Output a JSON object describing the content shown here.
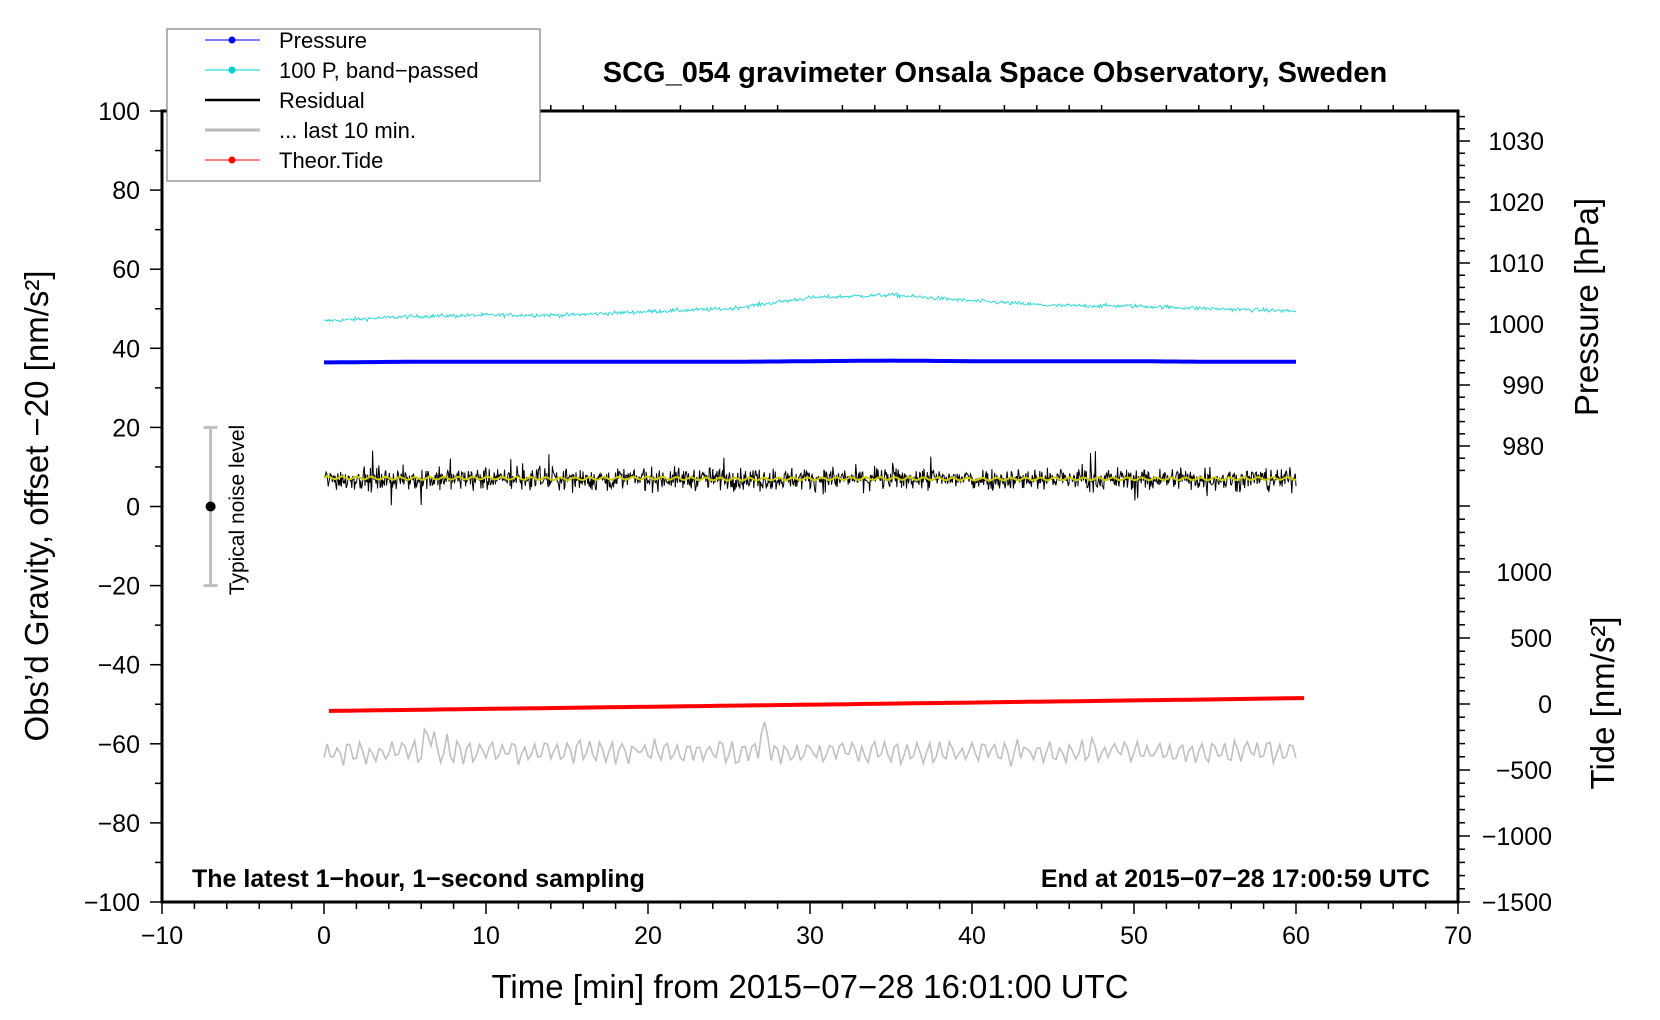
{
  "chart_data": {
    "type": "line",
    "title": "SCG_054 gravimeter Onsala Space Observatory, Sweden",
    "xlabel": "Time [min] from 2015−07−28 16:01:00 UTC",
    "ylabel": "Obs’d Gravity, offset −20 [nm/s²]",
    "y2label_pressure": "Pressure [hPa]",
    "y2label_tide": "Tide [nm/s²]",
    "xlim": [
      -10,
      70
    ],
    "ylim": [
      -100,
      100
    ],
    "pressure_lim_labels": [
      980,
      1030
    ],
    "tide_lim_labels": [
      -1500,
      1000
    ],
    "xticks": [
      "−10",
      "0",
      "10",
      "20",
      "30",
      "40",
      "50",
      "60",
      "70"
    ],
    "xtick_values": [
      -10,
      0,
      10,
      20,
      30,
      40,
      50,
      60,
      70
    ],
    "yticks": [
      "100",
      "80",
      "60",
      "40",
      "20",
      "0",
      "−20",
      "−40",
      "−60",
      "−80",
      "−100"
    ],
    "ytick_values": [
      100,
      80,
      60,
      40,
      20,
      0,
      -20,
      -40,
      -60,
      -80,
      -100
    ],
    "pressure_ticks": [
      "1030",
      "1020",
      "1010",
      "1000",
      "990",
      "980"
    ],
    "pressure_tick_values": [
      1030,
      1020,
      1010,
      1000,
      990,
      980
    ],
    "tide_ticks": [
      "1000",
      "500",
      "0",
      "−500",
      "−1000",
      "−1500"
    ],
    "tide_tick_values": [
      1000,
      500,
      0,
      -500,
      -1000,
      -1500
    ],
    "annotation_left": "The latest 1−hour, 1−second sampling",
    "annotation_right": "End at 2015−07−28 17:00:59 UTC",
    "noise_bar": {
      "label": "Typical noise level",
      "x": -7,
      "center": 0,
      "range": [
        -20,
        20
      ]
    },
    "legend_position": "top-left",
    "legend": [
      {
        "label": "Pressure",
        "color": "#0000ff",
        "marker": true
      },
      {
        "label": "100 P, band−passed",
        "color": "#00cccc",
        "marker": true
      },
      {
        "label": "Residual",
        "color": "#000000",
        "marker": false
      },
      {
        "label": "... last 10 min.",
        "color": "#bbbbbb",
        "marker": false
      },
      {
        "label": "Theor.Tide",
        "color": "#ff0000",
        "marker": true
      }
    ],
    "x": [
      0,
      5,
      10,
      15,
      20,
      25,
      30,
      35,
      40,
      45,
      50,
      55,
      60
    ],
    "series": [
      {
        "name": "Pressure",
        "axis": "pressure_hPa",
        "color": "#0000ff",
        "values": [
          993.7,
          993.8,
          993.8,
          993.8,
          993.8,
          993.8,
          993.9,
          994.0,
          993.9,
          993.9,
          993.9,
          993.8,
          993.8
        ]
      },
      {
        "name": "100 P, band-passed",
        "axis": "gravity",
        "color": "#33d6d6",
        "values": [
          46.9,
          48.0,
          48.4,
          48.4,
          49.3,
          50.0,
          52.8,
          53.5,
          52.0,
          50.8,
          50.7,
          50.0,
          49.4
        ]
      },
      {
        "name": "Residual",
        "axis": "gravity",
        "color": "#000000",
        "values": [
          7,
          7,
          7,
          7,
          7,
          7,
          7,
          7,
          7,
          7,
          7,
          7,
          7
        ]
      },
      {
        "name": "Residual smoothed",
        "axis": "gravity",
        "color": "#cccc00",
        "values": [
          7.3,
          7.1,
          7.2,
          7.0,
          7.2,
          6.9,
          7.0,
          7.1,
          6.9,
          7.0,
          7.0,
          7.0,
          7.1
        ]
      },
      {
        "name": "... last 10 min.",
        "axis": "gravity",
        "color": "#c0c0c0",
        "values": [
          -62,
          -62,
          -62,
          -62,
          -62,
          -62,
          -62,
          -62,
          -62,
          -62,
          -62,
          -62,
          -62
        ]
      },
      {
        "name": "Theor.Tide",
        "axis": "tide_nm_s2",
        "color": "#ff0000",
        "values": [
          -53,
          -45,
          -37,
          -29,
          -21,
          -13,
          -5,
          3,
          11,
          19,
          27,
          35,
          45
        ]
      }
    ]
  }
}
